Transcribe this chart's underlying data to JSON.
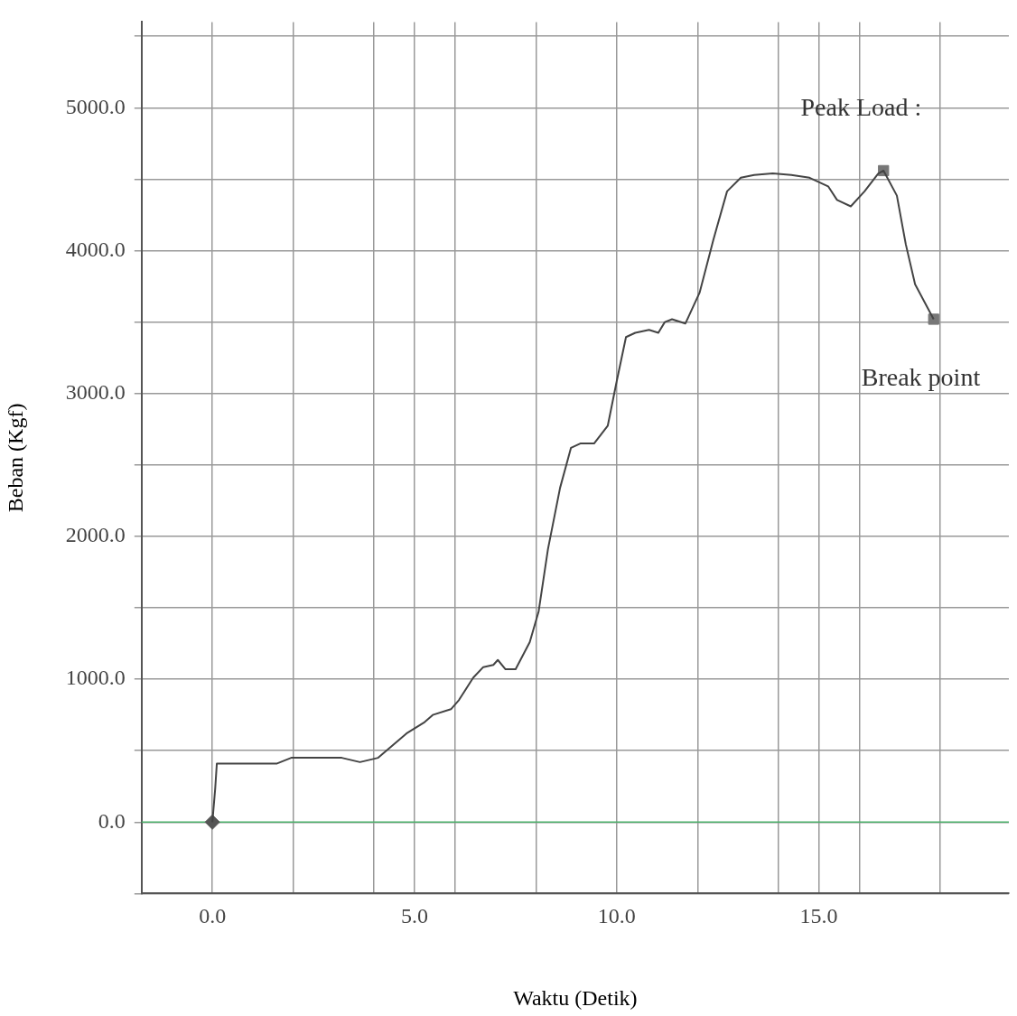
{
  "chart_data": {
    "type": "line",
    "xlabel": "Waktu (Detik)",
    "ylabel": "Beban (Kgf)",
    "xlim": [
      -1.75,
      19.7
    ],
    "xticks": [
      {
        "value": 0,
        "label": "0.0"
      },
      {
        "value": 2,
        "label": null
      },
      {
        "value": 4,
        "label": null
      },
      {
        "value": 5,
        "label": "5.0"
      },
      {
        "value": 6,
        "label": null
      },
      {
        "value": 8,
        "label": null
      },
      {
        "value": 10,
        "label": "10.0"
      },
      {
        "value": 12,
        "label": null
      },
      {
        "value": 14,
        "label": null
      },
      {
        "value": 15,
        "label": "15.0"
      },
      {
        "value": 16,
        "label": null
      },
      {
        "value": 18,
        "label": null
      }
    ],
    "ylim": [
      -500,
      5600
    ],
    "yticks": [
      {
        "value": -500,
        "label": null
      },
      {
        "value": 0,
        "label": "0.0"
      },
      {
        "value": 500,
        "label": null
      },
      {
        "value": 1000,
        "label": "1000.0"
      },
      {
        "value": 1500,
        "label": null
      },
      {
        "value": 2000,
        "label": "2000.0"
      },
      {
        "value": 2500,
        "label": null
      },
      {
        "value": 3000,
        "label": "3000.0"
      },
      {
        "value": 3500,
        "label": null
      },
      {
        "value": 4000,
        "label": "4000.0"
      },
      {
        "value": 4500,
        "label": null
      },
      {
        "value": 5000,
        "label": "5000.0"
      },
      {
        "value": 5500,
        "label": null
      }
    ],
    "grid": true,
    "ref_lines": [
      {
        "axis": "y",
        "value": 0,
        "color": "#4caf6a"
      }
    ],
    "series": [
      {
        "color": "#444444",
        "marker": "none",
        "x": [
          0,
          0.07,
          0.11,
          1.6,
          1.95,
          3.2,
          3.65,
          4.1,
          4.8,
          5.25,
          5.45,
          5.9,
          6.1,
          6.45,
          6.7,
          6.95,
          7.06,
          7.25,
          7.5,
          7.85,
          8.07,
          8.3,
          8.6,
          8.87,
          9.1,
          9.44,
          9.78,
          10.0,
          10.23,
          10.46,
          10.8,
          11.03,
          11.19,
          11.37,
          11.7,
          12.05,
          12.39,
          12.73,
          13.07,
          13.4,
          13.86,
          14.32,
          14.77,
          15.23,
          15.45,
          15.79,
          16.13,
          16.47,
          16.6,
          16.93,
          17.15,
          17.38,
          17.84
        ],
        "values": [
          0,
          235,
          410,
          410,
          450,
          450,
          420,
          450,
          620,
          700,
          750,
          790,
          855,
          1010,
          1085,
          1100,
          1135,
          1070,
          1070,
          1260,
          1475,
          1910,
          2340,
          2620,
          2650,
          2650,
          2775,
          3085,
          3395,
          3425,
          3445,
          3425,
          3500,
          3520,
          3490,
          3705,
          4075,
          4415,
          4510,
          4530,
          4540,
          4530,
          4510,
          4450,
          4355,
          4310,
          4415,
          4540,
          4560,
          4385,
          4045,
          3765,
          3520
        ]
      },
      {
        "type": "scatter",
        "color": "#555555",
        "marker": "diamond",
        "x": [
          0
        ],
        "values": [
          0
        ]
      },
      {
        "type": "scatter",
        "color": "#777777",
        "marker": "square",
        "x": [
          16.6,
          17.84
        ],
        "values": [
          4560,
          3520
        ]
      }
    ],
    "annotations": [
      "Peak Load :",
      "Break point"
    ]
  }
}
